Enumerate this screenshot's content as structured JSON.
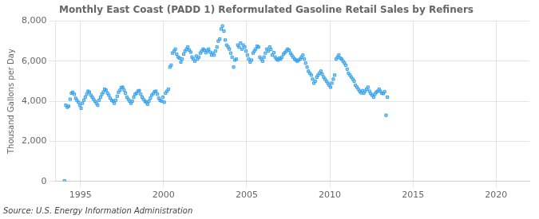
{
  "chart_data": {
    "type": "scatter",
    "title": "Monthly East Coast (PADD 1) Reformulated Gasoline Retail Sales by Refiners",
    "y_label": "Thousand Gallons per Day",
    "annotations": [
      "Source: U.S. Energy Information Administration"
    ],
    "marker": "square",
    "grid": true,
    "xlim": [
      1993.5,
      2022.0
    ],
    "xticks": [
      1995,
      2000,
      2005,
      2010,
      2015,
      2020
    ],
    "ylim": [
      0,
      8000
    ],
    "yticks": [
      0,
      {
        "value": 2000,
        "label": "2,000"
      },
      {
        "value": 4000,
        "label": "4,000"
      },
      {
        "value": 6000,
        "label": "6,000"
      },
      {
        "value": 8000,
        "label": "8,000"
      }
    ],
    "x": [
      1994.04,
      1994.12,
      1994.21,
      1994.29,
      1994.38,
      1994.46,
      1994.54,
      1994.63,
      1994.71,
      1994.79,
      1994.88,
      1994.96,
      1995.04,
      1995.12,
      1995.21,
      1995.29,
      1995.38,
      1995.46,
      1995.54,
      1995.63,
      1995.71,
      1995.79,
      1995.88,
      1995.96,
      1996.04,
      1996.12,
      1996.21,
      1996.29,
      1996.38,
      1996.46,
      1996.54,
      1996.63,
      1996.71,
      1996.79,
      1996.88,
      1996.96,
      1997.04,
      1997.12,
      1997.21,
      1997.29,
      1997.38,
      1997.46,
      1997.54,
      1997.63,
      1997.71,
      1997.79,
      1997.88,
      1997.96,
      1998.04,
      1998.12,
      1998.21,
      1998.29,
      1998.38,
      1998.46,
      1998.54,
      1998.63,
      1998.71,
      1998.79,
      1998.88,
      1998.96,
      1999.04,
      1999.12,
      1999.21,
      1999.29,
      1999.38,
      1999.46,
      1999.54,
      1999.63,
      1999.71,
      1999.79,
      1999.88,
      1999.96,
      2000.04,
      2000.12,
      2000.21,
      2000.29,
      2000.38,
      2000.46,
      2000.54,
      2000.63,
      2000.71,
      2000.79,
      2000.88,
      2000.96,
      2001.04,
      2001.12,
      2001.21,
      2001.29,
      2001.38,
      2001.46,
      2001.54,
      2001.63,
      2001.71,
      2001.79,
      2001.88,
      2001.96,
      2002.04,
      2002.12,
      2002.21,
      2002.29,
      2002.38,
      2002.46,
      2002.54,
      2002.63,
      2002.71,
      2002.79,
      2002.88,
      2002.96,
      2003.04,
      2003.12,
      2003.21,
      2003.29,
      2003.38,
      2003.46,
      2003.54,
      2003.63,
      2003.71,
      2003.79,
      2003.88,
      2003.96,
      2004.04,
      2004.12,
      2004.21,
      2004.29,
      2004.38,
      2004.46,
      2004.54,
      2004.63,
      2004.71,
      2004.79,
      2004.88,
      2004.96,
      2005.04,
      2005.12,
      2005.21,
      2005.29,
      2005.38,
      2005.46,
      2005.54,
      2005.63,
      2005.71,
      2005.79,
      2005.88,
      2005.96,
      2006.04,
      2006.12,
      2006.21,
      2006.29,
      2006.38,
      2006.46,
      2006.54,
      2006.63,
      2006.71,
      2006.79,
      2006.88,
      2006.96,
      2007.04,
      2007.12,
      2007.21,
      2007.29,
      2007.38,
      2007.46,
      2007.54,
      2007.63,
      2007.71,
      2007.79,
      2007.88,
      2007.96,
      2008.04,
      2008.12,
      2008.21,
      2008.29,
      2008.38,
      2008.46,
      2008.54,
      2008.63,
      2008.71,
      2008.79,
      2008.88,
      2008.96,
      2009.04,
      2009.12,
      2009.21,
      2009.29,
      2009.38,
      2009.46,
      2009.54,
      2009.63,
      2009.71,
      2009.79,
      2009.88,
      2009.96,
      2010.04,
      2010.12,
      2010.21,
      2010.29,
      2010.38,
      2010.46,
      2010.54,
      2010.63,
      2010.71,
      2010.79,
      2010.88,
      2010.96,
      2011.04,
      2011.12,
      2011.21,
      2011.29,
      2011.38,
      2011.46,
      2011.54,
      2011.63,
      2011.71,
      2011.79,
      2011.88,
      2011.96,
      2012.04,
      2012.12,
      2012.21,
      2012.29,
      2012.38,
      2012.46,
      2012.54,
      2012.63,
      2012.71,
      2012.79,
      2012.88,
      2012.96,
      2013.04,
      2013.12,
      2013.21,
      2013.29,
      2013.38,
      2013.46
    ],
    "values": [
      30,
      3800,
      3700,
      3750,
      4100,
      4400,
      4450,
      4350,
      4150,
      4050,
      3950,
      3800,
      3650,
      3900,
      4050,
      4200,
      4350,
      4500,
      4450,
      4300,
      4200,
      4100,
      4000,
      3900,
      3800,
      4050,
      4200,
      4350,
      4450,
      4600,
      4550,
      4400,
      4300,
      4150,
      4050,
      4000,
      3900,
      4050,
      4250,
      4450,
      4550,
      4680,
      4700,
      4550,
      4400,
      4200,
      4100,
      4000,
      3900,
      4000,
      4200,
      4350,
      4400,
      4500,
      4530,
      4350,
      4200,
      4100,
      4000,
      3950,
      3850,
      4000,
      4150,
      4300,
      4380,
      4480,
      4500,
      4350,
      4150,
      4050,
      4000,
      4200,
      3950,
      4400,
      4500,
      4600,
      5700,
      5800,
      6400,
      6500,
      6600,
      6350,
      6200,
      6150,
      5950,
      6100,
      6350,
      6500,
      6600,
      6700,
      6550,
      6450,
      6200,
      6100,
      6000,
      6250,
      6100,
      6200,
      6400,
      6500,
      6600,
      6550,
      6420,
      6520,
      6600,
      6450,
      6300,
      6400,
      6300,
      6500,
      6700,
      7000,
      7100,
      7600,
      7750,
      7500,
      7050,
      6800,
      6700,
      6600,
      6400,
      6200,
      5700,
      6050,
      6100,
      6800,
      6700,
      6900,
      6600,
      6800,
      6700,
      6500,
      6300,
      6100,
      5950,
      6050,
      6400,
      6500,
      6600,
      6750,
      6700,
      6200,
      6100,
      6000,
      6200,
      6400,
      6600,
      6500,
      6700,
      6580,
      6300,
      6420,
      6200,
      6100,
      6050,
      6150,
      6100,
      6200,
      6350,
      6420,
      6500,
      6600,
      6550,
      6400,
      6300,
      6200,
      6100,
      6050,
      6000,
      6050,
      6100,
      6200,
      6300,
      6100,
      5900,
      5700,
      5500,
      5400,
      5300,
      5100,
      4900,
      5000,
      5200,
      5300,
      5400,
      5500,
      5350,
      5200,
      5100,
      5000,
      4900,
      4800,
      4700,
      4900,
      5100,
      5300,
      6100,
      6200,
      6300,
      6150,
      6100,
      6000,
      5900,
      5800,
      5600,
      5400,
      5300,
      5200,
      5100,
      5000,
      4800,
      4700,
      4600,
      4500,
      4420,
      4530,
      4400,
      4500,
      4600,
      4700,
      4500,
      4380,
      4300,
      4200,
      4350,
      4450,
      4500,
      4600,
      4500,
      4400,
      4380,
      4470,
      3300,
      4200
    ]
  }
}
